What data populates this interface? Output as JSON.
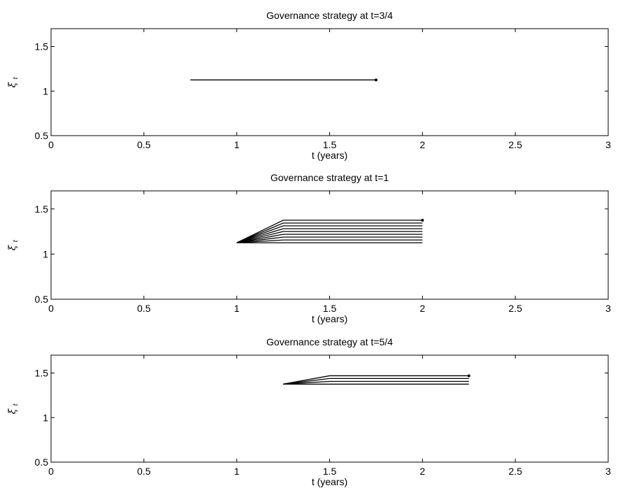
{
  "chart_data": [
    {
      "type": "line",
      "title": "Governance strategy at t=3/4",
      "xlabel": "t (years)",
      "ylabel": "ξ",
      "ylabel_subscript": "t",
      "xlim": [
        0,
        3
      ],
      "ylim": [
        0.5,
        1.7
      ],
      "xticks": [
        "0",
        "0.5",
        "1",
        "1.5",
        "2",
        "2.5",
        "3"
      ],
      "yticks": [
        "0.5",
        "1",
        "1.5"
      ],
      "grid": false,
      "series": [
        {
          "x": [
            0.75,
            1.75
          ],
          "y": [
            1.125,
            1.125
          ]
        }
      ],
      "marker": {
        "x": 1.75,
        "y": 1.125
      }
    },
    {
      "type": "line",
      "title": "Governance strategy at t=1",
      "xlabel": "t (years)",
      "ylabel": "ξ",
      "ylabel_subscript": "t",
      "xlim": [
        0,
        3
      ],
      "ylim": [
        0.5,
        1.7
      ],
      "xticks": [
        "0",
        "0.5",
        "1",
        "1.5",
        "2",
        "2.5",
        "3"
      ],
      "yticks": [
        "0.5",
        "1",
        "1.5"
      ],
      "grid": false,
      "series": [
        {
          "x": [
            1,
            1.25,
            2
          ],
          "y": [
            1.125,
            1.125,
            1.125
          ]
        },
        {
          "x": [
            1,
            1.25,
            2
          ],
          "y": [
            1.125,
            1.156,
            1.156
          ]
        },
        {
          "x": [
            1,
            1.25,
            2
          ],
          "y": [
            1.125,
            1.188,
            1.188
          ]
        },
        {
          "x": [
            1,
            1.25,
            2
          ],
          "y": [
            1.125,
            1.219,
            1.219
          ]
        },
        {
          "x": [
            1,
            1.25,
            2
          ],
          "y": [
            1.125,
            1.25,
            1.25
          ]
        },
        {
          "x": [
            1,
            1.25,
            2
          ],
          "y": [
            1.125,
            1.281,
            1.281
          ]
        },
        {
          "x": [
            1,
            1.25,
            2
          ],
          "y": [
            1.125,
            1.313,
            1.313
          ]
        },
        {
          "x": [
            1,
            1.25,
            2
          ],
          "y": [
            1.125,
            1.344,
            1.344
          ]
        },
        {
          "x": [
            1,
            1.25,
            2
          ],
          "y": [
            1.125,
            1.375,
            1.375
          ]
        }
      ],
      "marker": {
        "x": 2,
        "y": 1.375
      }
    },
    {
      "type": "line",
      "title": "Governance strategy at t=5/4",
      "xlabel": "t (years)",
      "ylabel": "ξ",
      "ylabel_subscript": "t",
      "xlim": [
        0,
        3
      ],
      "ylim": [
        0.5,
        1.7
      ],
      "xticks": [
        "0",
        "0.5",
        "1",
        "1.5",
        "2",
        "2.5",
        "3"
      ],
      "yticks": [
        "0.5",
        "1",
        "1.5"
      ],
      "grid": false,
      "series": [
        {
          "x": [
            1.25,
            1.5,
            2.25
          ],
          "y": [
            1.375,
            1.375,
            1.375
          ]
        },
        {
          "x": [
            1.25,
            1.5,
            2.25
          ],
          "y": [
            1.375,
            1.406,
            1.406
          ]
        },
        {
          "x": [
            1.25,
            1.5,
            2.25
          ],
          "y": [
            1.375,
            1.438,
            1.438
          ]
        },
        {
          "x": [
            1.25,
            1.5,
            2.25
          ],
          "y": [
            1.375,
            1.469,
            1.469
          ]
        }
      ],
      "marker": {
        "x": 2.25,
        "y": 1.469
      }
    }
  ]
}
